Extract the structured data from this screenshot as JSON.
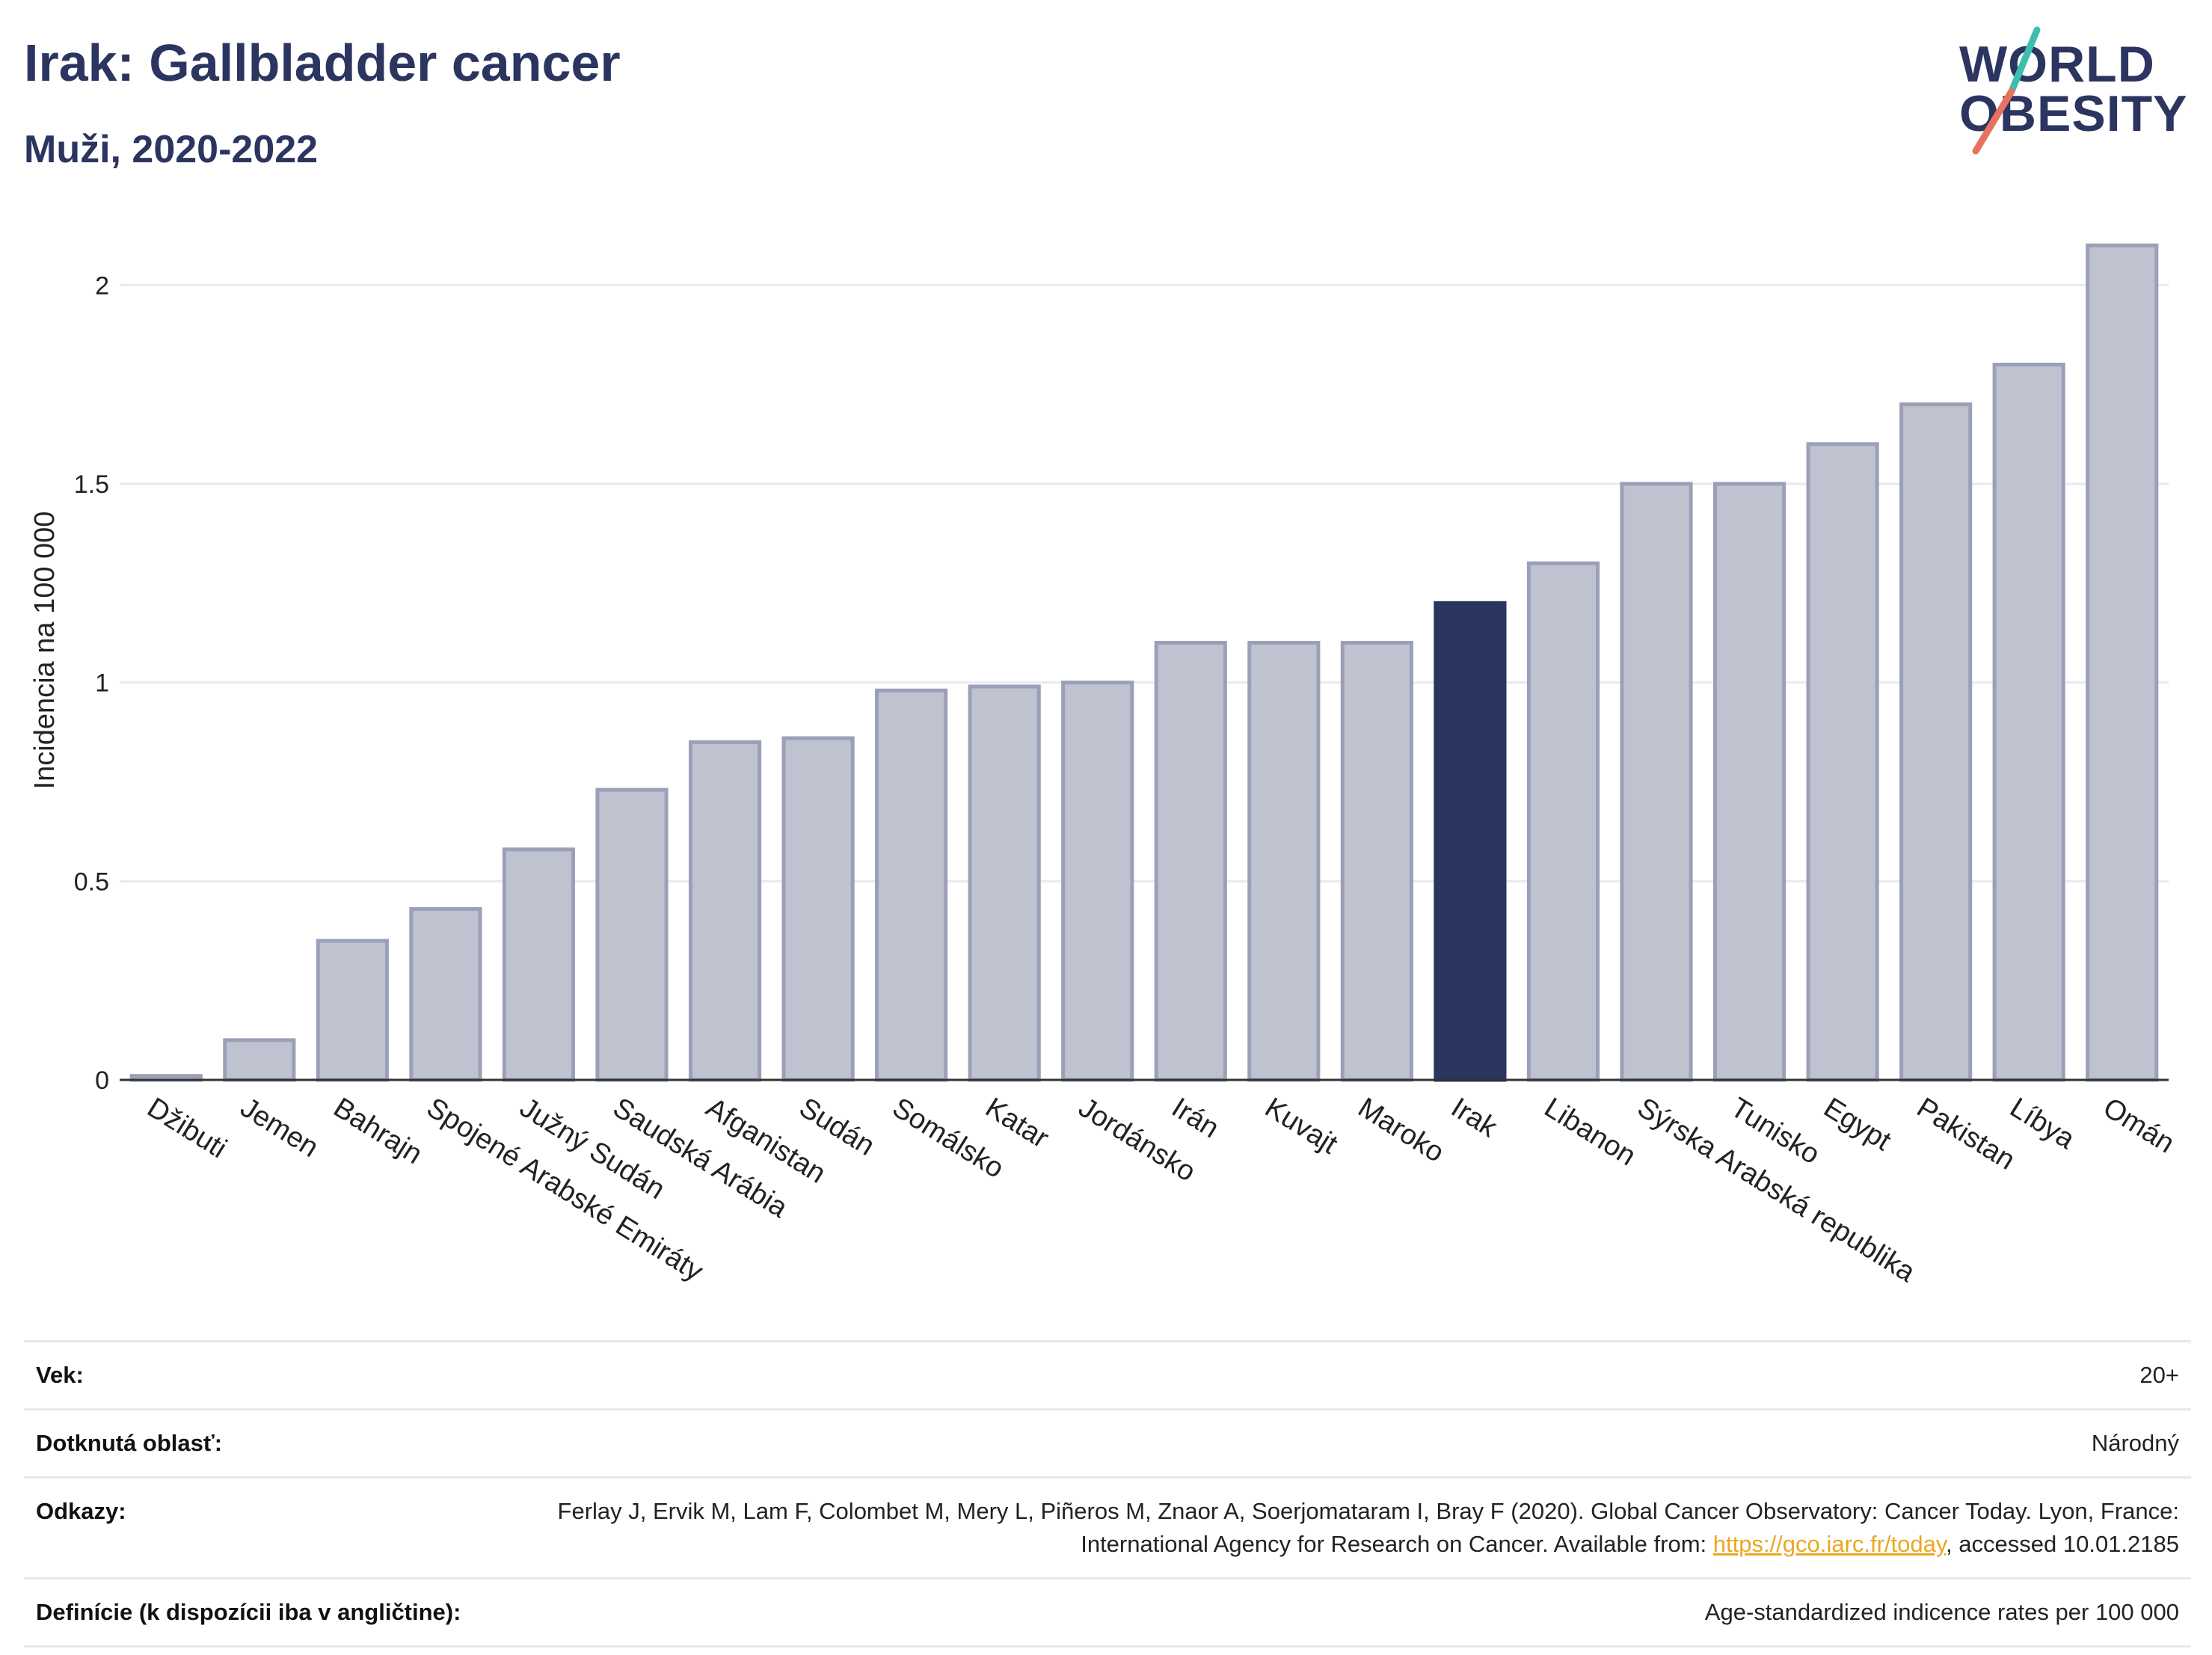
{
  "header": {
    "title": "Irak: Gallbladder cancer",
    "subtitle": "Muži, 2020-2022"
  },
  "logo": {
    "line1": "WORLD",
    "line2": "OBESITY",
    "slash_colors": [
      "#3cbfae",
      "#e8725e"
    ]
  },
  "colors": {
    "bar_default": "#bfc2cf",
    "bar_default_border": "#9ba0b8",
    "bar_highlight": "#2b3560",
    "text_dark": "#2b3560",
    "link": "#e9a822"
  },
  "chart_data": {
    "type": "bar",
    "ylabel": "Incidencia na 100 000",
    "xlabel": "",
    "ylim": [
      0,
      2.2
    ],
    "yticks": [
      0,
      0.5,
      1,
      1.5,
      2
    ],
    "ytick_labels": [
      "0",
      "0.5",
      "1",
      "1.5",
      "2"
    ],
    "grid": true,
    "highlight": "Irak",
    "categories": [
      "Džibuti",
      "Jemen",
      "Bahrajn",
      "Spojené Arabské Emiráty",
      "Južný Sudán",
      "Saudská Arábia",
      "Afganistan",
      "Sudán",
      "Somálsko",
      "Katar",
      "Jordánsko",
      "Irán",
      "Kuvajt",
      "Maroko",
      "Irak",
      "Libanon",
      "Sýrska Arabská republika",
      "Tunisko",
      "Egypt",
      "Pakistan",
      "Líbya",
      "Omán"
    ],
    "values": [
      0.01,
      0.1,
      0.35,
      0.43,
      0.58,
      0.73,
      0.85,
      0.86,
      0.98,
      0.99,
      1.0,
      1.1,
      1.1,
      1.1,
      1.2,
      1.3,
      1.5,
      1.5,
      1.6,
      1.7,
      1.8,
      2.1
    ]
  },
  "info": {
    "rows": [
      {
        "label": "Vek:",
        "value": "20+"
      },
      {
        "label": "Dotknutá oblasť:",
        "value": "Národný"
      },
      {
        "label": "Odkazy:",
        "value_pre": "Ferlay J, Ervik M, Lam F, Colombet M, Mery L, Piñeros M, Znaor A, Soerjomataram I, Bray F (2020). Global Cancer Observatory: Cancer Today. Lyon, France: International Agency for Research on Cancer. Available from: ",
        "link_text": "https://gco.iarc.fr/today",
        "value_post": ", accessed 10.01.2185"
      },
      {
        "label": "Definície (k dispozícii iba v angličtine):",
        "value": "Age-standardized indicence rates per 100 000"
      }
    ]
  }
}
